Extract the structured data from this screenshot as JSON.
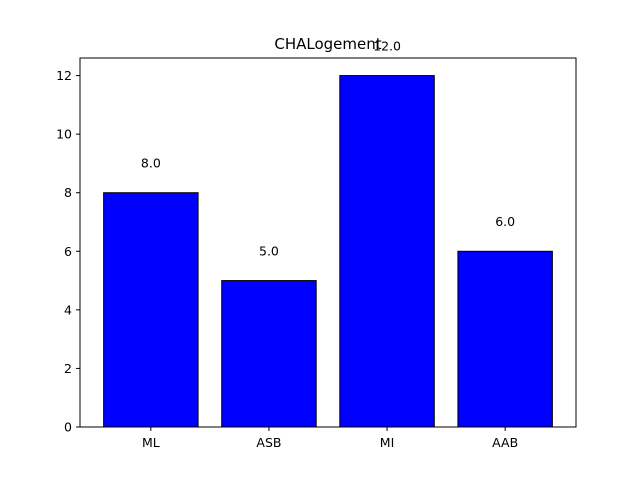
{
  "chart_data": {
    "type": "bar",
    "title": "CHALogement",
    "xlabel": "",
    "ylabel": "",
    "categories": [
      "ML",
      "ASB",
      "MI",
      "AAB"
    ],
    "values": [
      8.0,
      5.0,
      12.0,
      6.0
    ],
    "data_labels": [
      "8.0",
      "5.0",
      "12.0",
      "6.0"
    ],
    "ylim": [
      0,
      12.6
    ],
    "yticks": [
      0,
      2,
      4,
      6,
      8,
      10,
      12
    ],
    "bar_color": "#0000ff",
    "bar_edge_color": "#000000",
    "grid": false,
    "legend": false
  }
}
